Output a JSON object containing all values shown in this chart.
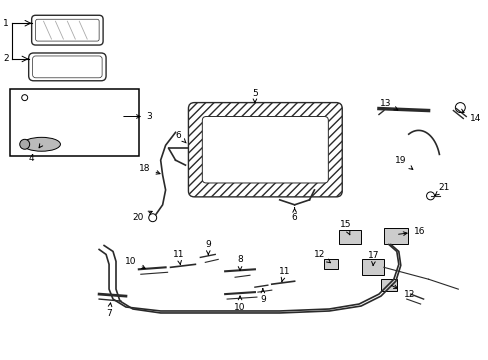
{
  "bg_color": "#ffffff",
  "line_color": "#2a2a2a",
  "hatch_color": "#888888",
  "fig_width": 4.89,
  "fig_height": 3.6,
  "dpi": 100,
  "parts": {
    "1_label": "1",
    "2_label": "2",
    "3_label": "3",
    "4_label": "4",
    "5_label": "5",
    "6_label": "6",
    "7_label": "7",
    "8_label": "8",
    "9_label": "9",
    "10_label": "10",
    "11_label": "11",
    "12_label": "12",
    "13_label": "13",
    "14_label": "14",
    "15_label": "15",
    "16_label": "16",
    "17_label": "17",
    "18_label": "18",
    "19_label": "19",
    "20_label": "20",
    "21_label": "21"
  }
}
